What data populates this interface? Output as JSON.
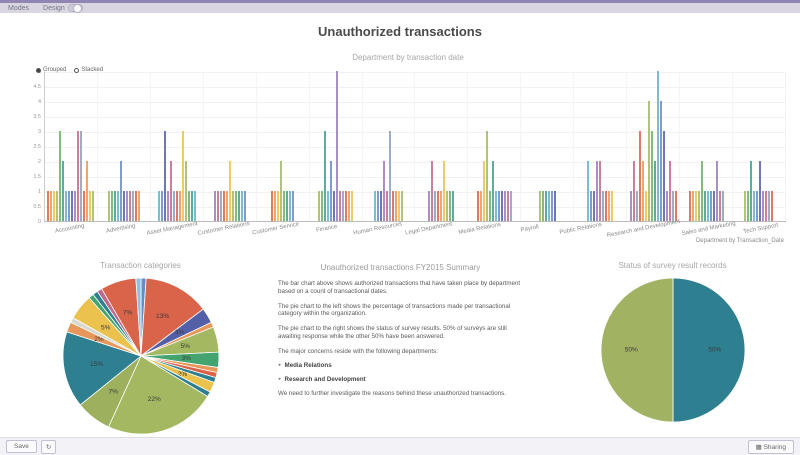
{
  "topbar": {
    "modes_label": "Modes",
    "design_label": "Design",
    "design_toggle_on": true
  },
  "page": {
    "title": "Unauthorized transactions"
  },
  "summary": {
    "title": "Unauthorized transactions FY2015 Summary",
    "p1": "The bar chart above shows authorized transactions that have taken place by department based on a count of transactional dates.",
    "p2": "The pie chart to the left shows the percentage of transactions made per transactional category within the organization.",
    "p3": "The pie chart to the right shows the status of survey results. 50% of surveys are still awaiting response while the other 50% have been answered.",
    "p4": "The major concerns reside with the following departments:",
    "bullets": [
      "Media Relations",
      "Research and Development"
    ],
    "bullet_arrow": "‣",
    "p5": "We need to further investigate the reasons behind these unauthorized transactions."
  },
  "footer": {
    "save_label": "Save",
    "refresh_icon": "↻",
    "sharing_icon": "▦",
    "sharing_label": "Sharing"
  },
  "chart_data": [
    {
      "type": "bar",
      "title": "Department by transaction date",
      "xlabel": "Department by Transaction_Date",
      "ylim": [
        0,
        5
      ],
      "y_ticks": [
        5,
        4.5,
        4,
        3.5,
        3,
        2.5,
        2,
        1.5,
        1,
        0.5,
        0
      ],
      "grid": true,
      "legend": [
        "Grouped",
        "Stacked"
      ],
      "legend_selected": 0,
      "palette": [
        "#d9644a",
        "#e8975a",
        "#eac24d",
        "#a3b861",
        "#6fae6a",
        "#3f9d8f",
        "#5fb4c9",
        "#6a89c9",
        "#5360a8",
        "#9d7bb5",
        "#c06a8c",
        "#8c9fb8"
      ],
      "groups": [
        {
          "label": "Accounting",
          "values": [
            1,
            1,
            1,
            1,
            3,
            2,
            1,
            1,
            1,
            1,
            3,
            3,
            1,
            2,
            1,
            1
          ]
        },
        {
          "label": "Advertising",
          "values": [
            1,
            1,
            1,
            1,
            2,
            1,
            1,
            1,
            1,
            1,
            1
          ]
        },
        {
          "label": "Asset Management",
          "values": [
            1,
            1,
            3,
            1,
            2,
            1,
            1,
            1,
            3,
            2,
            1,
            1,
            1
          ]
        },
        {
          "label": "Customer Relations",
          "values": [
            1,
            1,
            1,
            1,
            1,
            2,
            1,
            1,
            1,
            1,
            1
          ]
        },
        {
          "label": "Customer Service",
          "values": [
            1,
            1,
            1,
            2,
            1,
            1,
            1,
            1
          ]
        },
        {
          "label": "Finance",
          "values": [
            1,
            1,
            3,
            1,
            2,
            1,
            5,
            1,
            1,
            1,
            1,
            1
          ]
        },
        {
          "label": "Human Resources",
          "values": [
            1,
            1,
            1,
            2,
            1,
            3,
            1,
            1,
            1,
            1
          ]
        },
        {
          "label": "Legal Department",
          "values": [
            1,
            2,
            1,
            1,
            1,
            2,
            1,
            1,
            1
          ]
        },
        {
          "label": "Media Relations",
          "values": [
            1,
            1,
            2,
            3,
            1,
            2,
            1,
            1,
            1,
            1,
            1,
            1
          ]
        },
        {
          "label": "Payroll",
          "values": [
            1,
            1,
            1,
            1,
            1,
            1
          ]
        },
        {
          "label": "Public Relations",
          "values": [
            2,
            1,
            1,
            2,
            2,
            1,
            1,
            1,
            1
          ]
        },
        {
          "label": "Research and Development",
          "values": [
            1,
            2,
            1,
            3,
            2,
            1,
            4,
            3,
            2,
            5,
            4,
            3,
            1,
            2,
            1,
            1
          ]
        },
        {
          "label": "Sales and Marketing",
          "values": [
            1,
            1,
            1,
            1,
            2,
            1,
            1,
            1,
            1,
            2,
            1,
            1
          ]
        },
        {
          "label": "Tech Support",
          "values": [
            1,
            1,
            2,
            1,
            1,
            2,
            1,
            1,
            1,
            1
          ]
        }
      ]
    },
    {
      "type": "pie",
      "title": "Transaction categories",
      "slices": [
        {
          "value": 1,
          "color": "#6a89c9",
          "label": ""
        },
        {
          "value": 13,
          "color": "#d9644a",
          "label": "13%"
        },
        {
          "value": 3,
          "color": "#5360a8",
          "label": "3%"
        },
        {
          "value": 1,
          "color": "#e8975a",
          "label": ""
        },
        {
          "value": 5,
          "color": "#a3b861",
          "label": "5%"
        },
        {
          "value": 3,
          "color": "#44a470",
          "label": "3%"
        },
        {
          "value": 1,
          "color": "#e8975a",
          "label": ""
        },
        {
          "value": 1,
          "color": "#d9644a",
          "label": ""
        },
        {
          "value": 1,
          "color": "#2e7f8f",
          "label": ""
        },
        {
          "value": 2,
          "color": "#eac24d",
          "label": "2%"
        },
        {
          "value": 1,
          "color": "#2e7f8f",
          "label": ""
        },
        {
          "value": 22,
          "color": "#a3b861",
          "label": "22%"
        },
        {
          "value": 7,
          "color": "#9cb05e",
          "label": "7%"
        },
        {
          "value": 15,
          "color": "#2e7f8f",
          "label": "15%"
        },
        {
          "value": 2,
          "color": "#e8975a",
          "label": "2%"
        },
        {
          "value": 1,
          "color": "#d8d8cf",
          "label": ""
        },
        {
          "value": 5,
          "color": "#eac24d",
          "label": "5%"
        },
        {
          "value": 1,
          "color": "#44a470",
          "label": ""
        },
        {
          "value": 1,
          "color": "#2e7f8f",
          "label": ""
        },
        {
          "value": 1,
          "color": "#c06a8c",
          "label": ""
        },
        {
          "value": 7,
          "color": "#d9644a",
          "label": "7%"
        },
        {
          "value": 1,
          "color": "#8fc0de",
          "label": ""
        }
      ]
    },
    {
      "type": "pie",
      "title": "Status of survey result records",
      "slices": [
        {
          "value": 50,
          "color": "#2e7f8f",
          "label": "50%"
        },
        {
          "value": 50,
          "color": "#a2b263",
          "label": "50%"
        }
      ]
    }
  ]
}
